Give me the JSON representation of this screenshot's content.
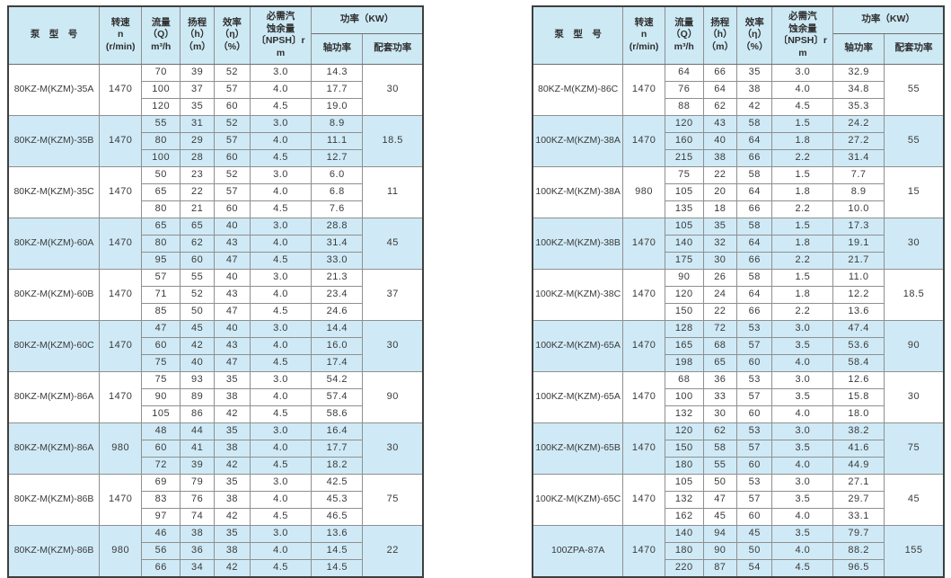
{
  "header": {
    "model": "泵　型　号",
    "speed": [
      "转速",
      "n",
      "(r/min)"
    ],
    "flow": [
      "流量",
      "（Q）",
      "m³/h"
    ],
    "head": [
      "扬程",
      "（h）",
      "（m）"
    ],
    "efficiency": [
      "效率",
      "（η）",
      "（%）"
    ],
    "npsh": [
      "必需汽",
      "蚀余量",
      "〔NPSH〕r",
      "m"
    ],
    "power": "功率（KW）",
    "shaft_power": "轴功率",
    "matched_power": "配套功率"
  },
  "colors": {
    "header_bg": "#cde9f4",
    "shaded_row_bg": "#cfeaf6",
    "outer_border": "#3f3f3f",
    "grid_line": "#8f8f8f",
    "text": "#3a3a3a"
  },
  "tables": [
    {
      "name": "left",
      "rows": [
        {
          "model": "80KZ-M(KZM)-35A",
          "speed": "1470",
          "matched": "30",
          "shaded": false,
          "sub": [
            [
              "70",
              "39",
              "52",
              "3.0",
              "14.3"
            ],
            [
              "100",
              "37",
              "57",
              "4.0",
              "17.7"
            ],
            [
              "120",
              "35",
              "60",
              "4.5",
              "19.0"
            ]
          ]
        },
        {
          "model": "80KZ-M(KZM)-35B",
          "speed": "1470",
          "matched": "18.5",
          "shaded": true,
          "sub": [
            [
              "55",
              "31",
              "52",
              "3.0",
              "8.9"
            ],
            [
              "80",
              "29",
              "57",
              "4.0",
              "11.1"
            ],
            [
              "100",
              "28",
              "60",
              "4.5",
              "12.7"
            ]
          ]
        },
        {
          "model": "80KZ-M(KZM)-35C",
          "speed": "1470",
          "matched": "11",
          "shaded": false,
          "sub": [
            [
              "50",
              "23",
              "52",
              "3.0",
              "6.0"
            ],
            [
              "65",
              "22",
              "57",
              "4.0",
              "6.8"
            ],
            [
              "80",
              "21",
              "60",
              "4.5",
              "7.6"
            ]
          ]
        },
        {
          "model": "80KZ-M(KZM)-60A",
          "speed": "1470",
          "matched": "45",
          "shaded": true,
          "sub": [
            [
              "65",
              "65",
              "40",
              "3.0",
              "28.8"
            ],
            [
              "80",
              "62",
              "43",
              "4.0",
              "31.4"
            ],
            [
              "95",
              "60",
              "47",
              "4.5",
              "33.0"
            ]
          ]
        },
        {
          "model": "80KZ-M(KZM)-60B",
          "speed": "1470",
          "matched": "37",
          "shaded": false,
          "sub": [
            [
              "57",
              "55",
              "40",
              "3.0",
              "21.3"
            ],
            [
              "71",
              "52",
              "43",
              "4.0",
              "23.4"
            ],
            [
              "85",
              "50",
              "47",
              "4.5",
              "24.6"
            ]
          ]
        },
        {
          "model": "80KZ-M(KZM)-60C",
          "speed": "1470",
          "matched": "30",
          "shaded": true,
          "sub": [
            [
              "47",
              "45",
              "40",
              "3.0",
              "14.4"
            ],
            [
              "60",
              "42",
              "43",
              "4.0",
              "16.0"
            ],
            [
              "75",
              "40",
              "47",
              "4.5",
              "17.4"
            ]
          ]
        },
        {
          "model": "80KZ-M(KZM)-86A",
          "speed": "1470",
          "matched": "90",
          "shaded": false,
          "sub": [
            [
              "75",
              "93",
              "35",
              "3.0",
              "54.2"
            ],
            [
              "90",
              "89",
              "38",
              "4.0",
              "57.4"
            ],
            [
              "105",
              "86",
              "42",
              "4.5",
              "58.6"
            ]
          ]
        },
        {
          "model": "80KZ-M(KZM)-86A",
          "speed": "980",
          "matched": "30",
          "shaded": true,
          "sub": [
            [
              "48",
              "44",
              "35",
              "3.0",
              "16.4"
            ],
            [
              "60",
              "41",
              "38",
              "4.0",
              "17.7"
            ],
            [
              "72",
              "39",
              "42",
              "4.5",
              "18.2"
            ]
          ]
        },
        {
          "model": "80KZ-M(KZM)-86B",
          "speed": "1470",
          "matched": "75",
          "shaded": false,
          "sub": [
            [
              "69",
              "79",
              "35",
              "3.0",
              "42.5"
            ],
            [
              "83",
              "76",
              "38",
              "4.0",
              "45.3"
            ],
            [
              "97",
              "74",
              "42",
              "4.5",
              "46.5"
            ]
          ]
        },
        {
          "model": "80KZ-M(KZM)-86B",
          "speed": "980",
          "matched": "22",
          "shaded": true,
          "sub": [
            [
              "46",
              "38",
              "35",
              "3.0",
              "13.6"
            ],
            [
              "56",
              "36",
              "38",
              "4.0",
              "14.5"
            ],
            [
              "66",
              "34",
              "42",
              "4.5",
              "14.5"
            ]
          ]
        }
      ]
    },
    {
      "name": "right",
      "rows": [
        {
          "model": "80KZ-M(KZM)-86C",
          "speed": "1470",
          "matched": "55",
          "shaded": false,
          "sub": [
            [
              "64",
              "66",
              "35",
              "3.0",
              "32.9"
            ],
            [
              "76",
              "64",
              "38",
              "4.0",
              "34.8"
            ],
            [
              "88",
              "62",
              "42",
              "4.5",
              "35.3"
            ]
          ]
        },
        {
          "model": "100KZ-M(KZM)-38A",
          "speed": "1470",
          "matched": "55",
          "shaded": true,
          "sub": [
            [
              "120",
              "43",
              "58",
              "1.5",
              "24.2"
            ],
            [
              "160",
              "40",
              "64",
              "1.8",
              "27.2"
            ],
            [
              "215",
              "38",
              "66",
              "2.2",
              "31.4"
            ]
          ]
        },
        {
          "model": "100KZ-M(KZM)-38A",
          "speed": "980",
          "matched": "15",
          "shaded": false,
          "sub": [
            [
              "75",
              "22",
              "58",
              "1.5",
              "7.7"
            ],
            [
              "105",
              "20",
              "64",
              "1.8",
              "8.9"
            ],
            [
              "135",
              "18",
              "66",
              "2.2",
              "10.0"
            ]
          ]
        },
        {
          "model": "100KZ-M(KZM)-38B",
          "speed": "1470",
          "matched": "30",
          "shaded": true,
          "sub": [
            [
              "105",
              "35",
              "58",
              "1.5",
              "17.3"
            ],
            [
              "140",
              "32",
              "64",
              "1.8",
              "19.1"
            ],
            [
              "175",
              "30",
              "66",
              "2.2",
              "21.7"
            ]
          ]
        },
        {
          "model": "100KZ-M(KZM)-38C",
          "speed": "1470",
          "matched": "18.5",
          "shaded": false,
          "sub": [
            [
              "90",
              "26",
              "58",
              "1.5",
              "11.0"
            ],
            [
              "120",
              "24",
              "64",
              "1.8",
              "12.2"
            ],
            [
              "150",
              "22",
              "66",
              "2.2",
              "13.6"
            ]
          ]
        },
        {
          "model": "100KZ-M(KZM)-65A",
          "speed": "1470",
          "matched": "90",
          "shaded": true,
          "sub": [
            [
              "128",
              "72",
              "53",
              "3.0",
              "47.4"
            ],
            [
              "165",
              "68",
              "57",
              "3.5",
              "53.6"
            ],
            [
              "198",
              "65",
              "60",
              "4.0",
              "58.4"
            ]
          ]
        },
        {
          "model": "100KZ-M(KZM)-65A",
          "speed": "1470",
          "matched": "30",
          "shaded": false,
          "sub": [
            [
              "68",
              "36",
              "53",
              "3.0",
              "12.6"
            ],
            [
              "100",
              "33",
              "57",
              "3.5",
              "15.8"
            ],
            [
              "132",
              "30",
              "60",
              "4.0",
              "18.0"
            ]
          ]
        },
        {
          "model": "100KZ-M(KZM)-65B",
          "speed": "1470",
          "matched": "75",
          "shaded": true,
          "sub": [
            [
              "120",
              "62",
              "53",
              "3.0",
              "38.2"
            ],
            [
              "150",
              "58",
              "57",
              "3.5",
              "41.6"
            ],
            [
              "180",
              "55",
              "60",
              "4.0",
              "44.9"
            ]
          ]
        },
        {
          "model": "100KZ-M(KZM)-65C",
          "speed": "1470",
          "matched": "45",
          "shaded": false,
          "sub": [
            [
              "105",
              "50",
              "53",
              "3.0",
              "27.1"
            ],
            [
              "132",
              "47",
              "57",
              "3.5",
              "29.7"
            ],
            [
              "162",
              "45",
              "60",
              "4.0",
              "33.1"
            ]
          ]
        },
        {
          "model": "100ZPA-87A",
          "speed": "1470",
          "matched": "155",
          "shaded": true,
          "sub": [
            [
              "140",
              "94",
              "45",
              "3.5",
              "79.7"
            ],
            [
              "180",
              "90",
              "50",
              "4.0",
              "88.2"
            ],
            [
              "220",
              "87",
              "54",
              "4.5",
              "96.5"
            ]
          ]
        }
      ]
    }
  ]
}
